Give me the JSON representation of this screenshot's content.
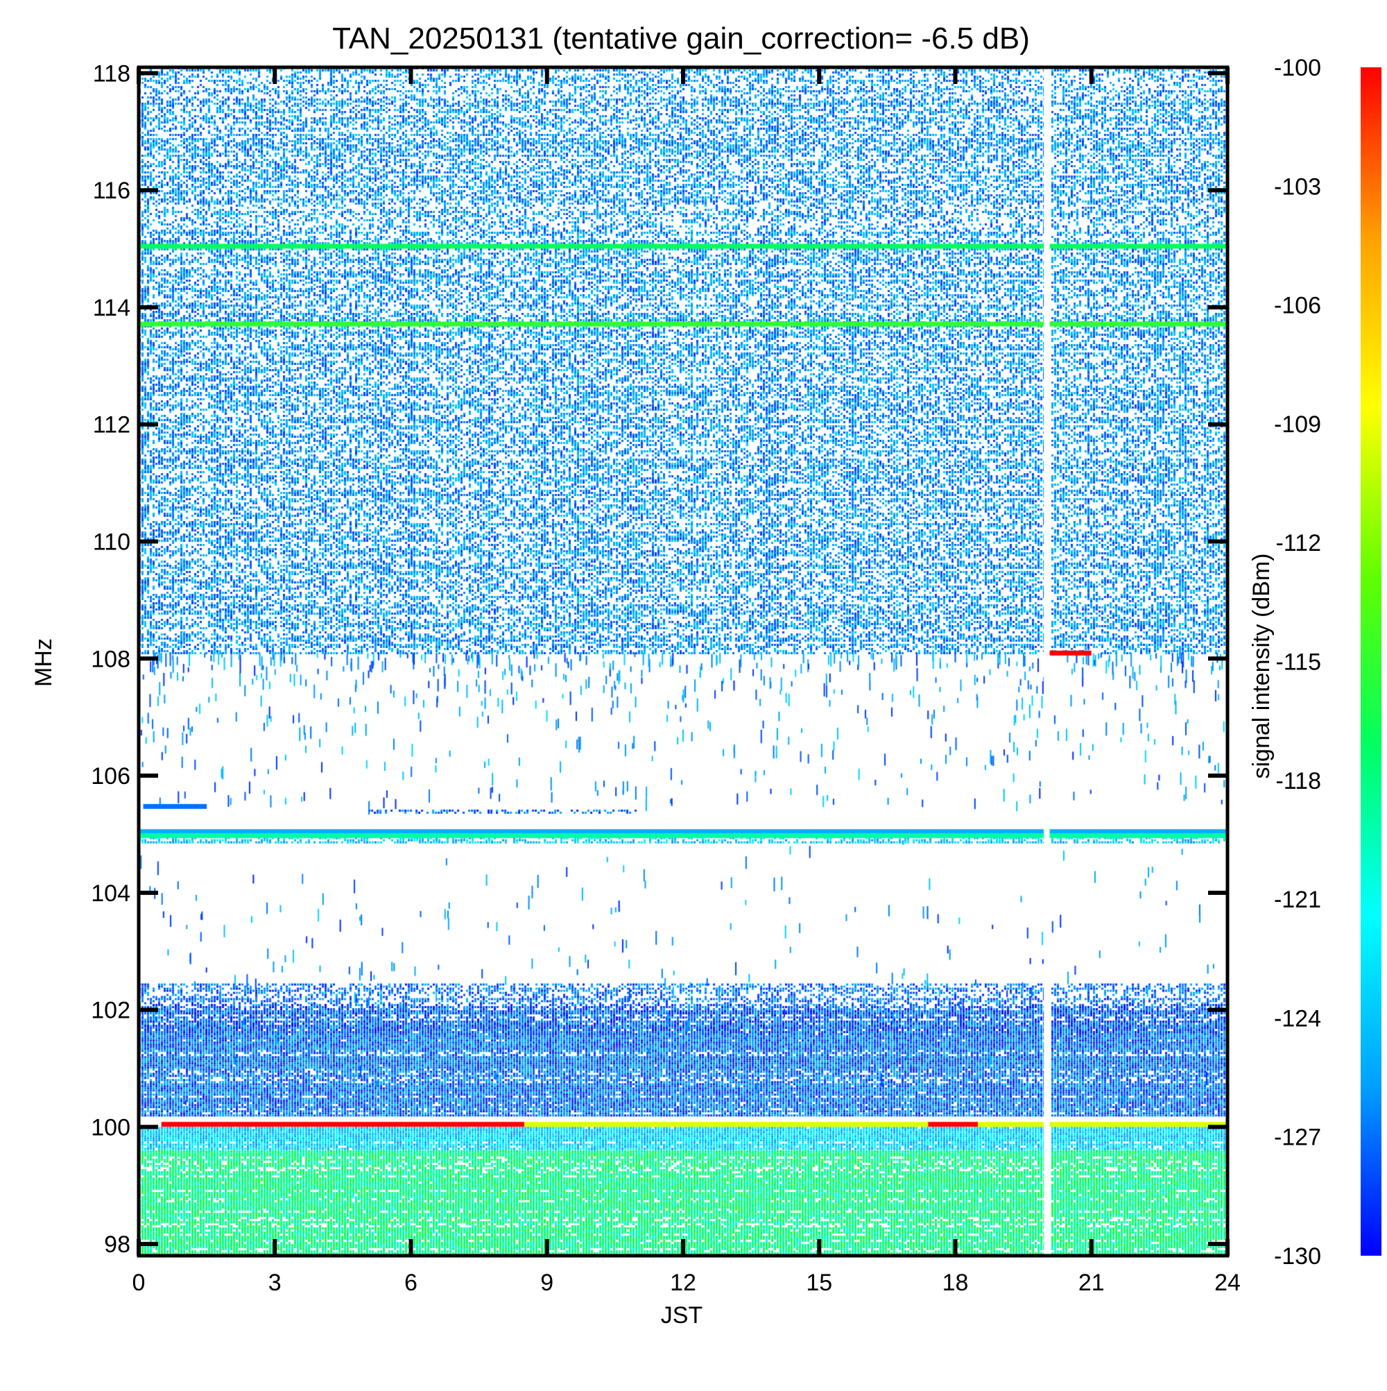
{
  "chart_data": {
    "type": "heatmap",
    "title": "TAN_20250131 (tentative gain_correction= -6.5 dB)",
    "xlabel": "JST",
    "ylabel": "MHz",
    "xlim": [
      0,
      24
    ],
    "ylim": [
      97.8,
      118.1
    ],
    "x_ticks": [
      0,
      3,
      6,
      9,
      12,
      15,
      18,
      21,
      24
    ],
    "y_ticks": [
      98,
      100,
      102,
      104,
      106,
      108,
      110,
      112,
      114,
      116,
      118
    ],
    "colorbar": {
      "label": "signal intensity (dBm)",
      "range": [
        -130,
        -100
      ],
      "ticks": [
        -100,
        -103,
        -106,
        -109,
        -112,
        -115,
        -118,
        -121,
        -124,
        -127,
        -130
      ],
      "colormap": [
        "#0000ff",
        "#00a0ff",
        "#00ffff",
        "#00ff60",
        "#60ff00",
        "#ffff00",
        "#ffa000",
        "#ff0000"
      ]
    },
    "data_gap": {
      "x_start": 19.95,
      "x_end": 20.08
    },
    "bands": [
      {
        "f_lo": 108.1,
        "f_hi": 118.1,
        "x_start": 0,
        "x_end": 24,
        "level": -126,
        "density": 0.5
      },
      {
        "f_lo": 102.1,
        "f_hi": 102.45,
        "x_start": 0,
        "x_end": 24,
        "level": -127,
        "density": 0.5
      },
      {
        "f_lo": 101.6,
        "f_hi": 102.1,
        "x_start": 0,
        "x_end": 24,
        "level": -127.5,
        "density": 0.85
      },
      {
        "f_lo": 100.2,
        "f_hi": 101.6,
        "x_start": 0,
        "x_end": 24,
        "level": -127,
        "density": 1.0
      },
      {
        "f_lo": 99.6,
        "f_hi": 100.0,
        "x_start": 0,
        "x_end": 24,
        "level": -123.5,
        "density": 1.0
      },
      {
        "f_lo": 97.8,
        "f_hi": 99.6,
        "x_start": 0,
        "x_end": 24,
        "level": -118,
        "density": 1.0
      },
      {
        "f_lo": 104.85,
        "f_hi": 104.95,
        "x_start": 0,
        "x_end": 24,
        "level": -124,
        "density": 0.7
      },
      {
        "f_lo": 105.35,
        "f_hi": 105.42,
        "x_start": 5.0,
        "x_end": 11.0,
        "level": -127,
        "density": 0.6
      }
    ],
    "lines": [
      {
        "f": 115.05,
        "x_start": 0,
        "x_end": 24,
        "level": -117
      },
      {
        "f": 113.72,
        "x_start": 0,
        "x_end": 24,
        "level": -115
      },
      {
        "f": 105.05,
        "x_start": 0,
        "x_end": 24,
        "level": -125
      },
      {
        "f": 104.98,
        "x_start": 0,
        "x_end": 24,
        "level": -119
      },
      {
        "f": 105.48,
        "x_start": 0.1,
        "x_end": 1.5,
        "level": -127
      },
      {
        "f": 100.05,
        "x_start": 0.5,
        "x_end": 8.5,
        "level": -100
      },
      {
        "f": 100.05,
        "x_start": 8.5,
        "x_end": 17.4,
        "level": -109.5
      },
      {
        "f": 100.05,
        "x_start": 17.4,
        "x_end": 18.5,
        "level": -100
      },
      {
        "f": 100.05,
        "x_start": 18.5,
        "x_end": 24,
        "level": -109.5
      },
      {
        "f": 108.1,
        "x_start": 20.0,
        "x_end": 21.0,
        "level": -100
      }
    ],
    "sparse_region": {
      "f_lo": 102.45,
      "f_hi": 108.1,
      "level": -126
    }
  }
}
